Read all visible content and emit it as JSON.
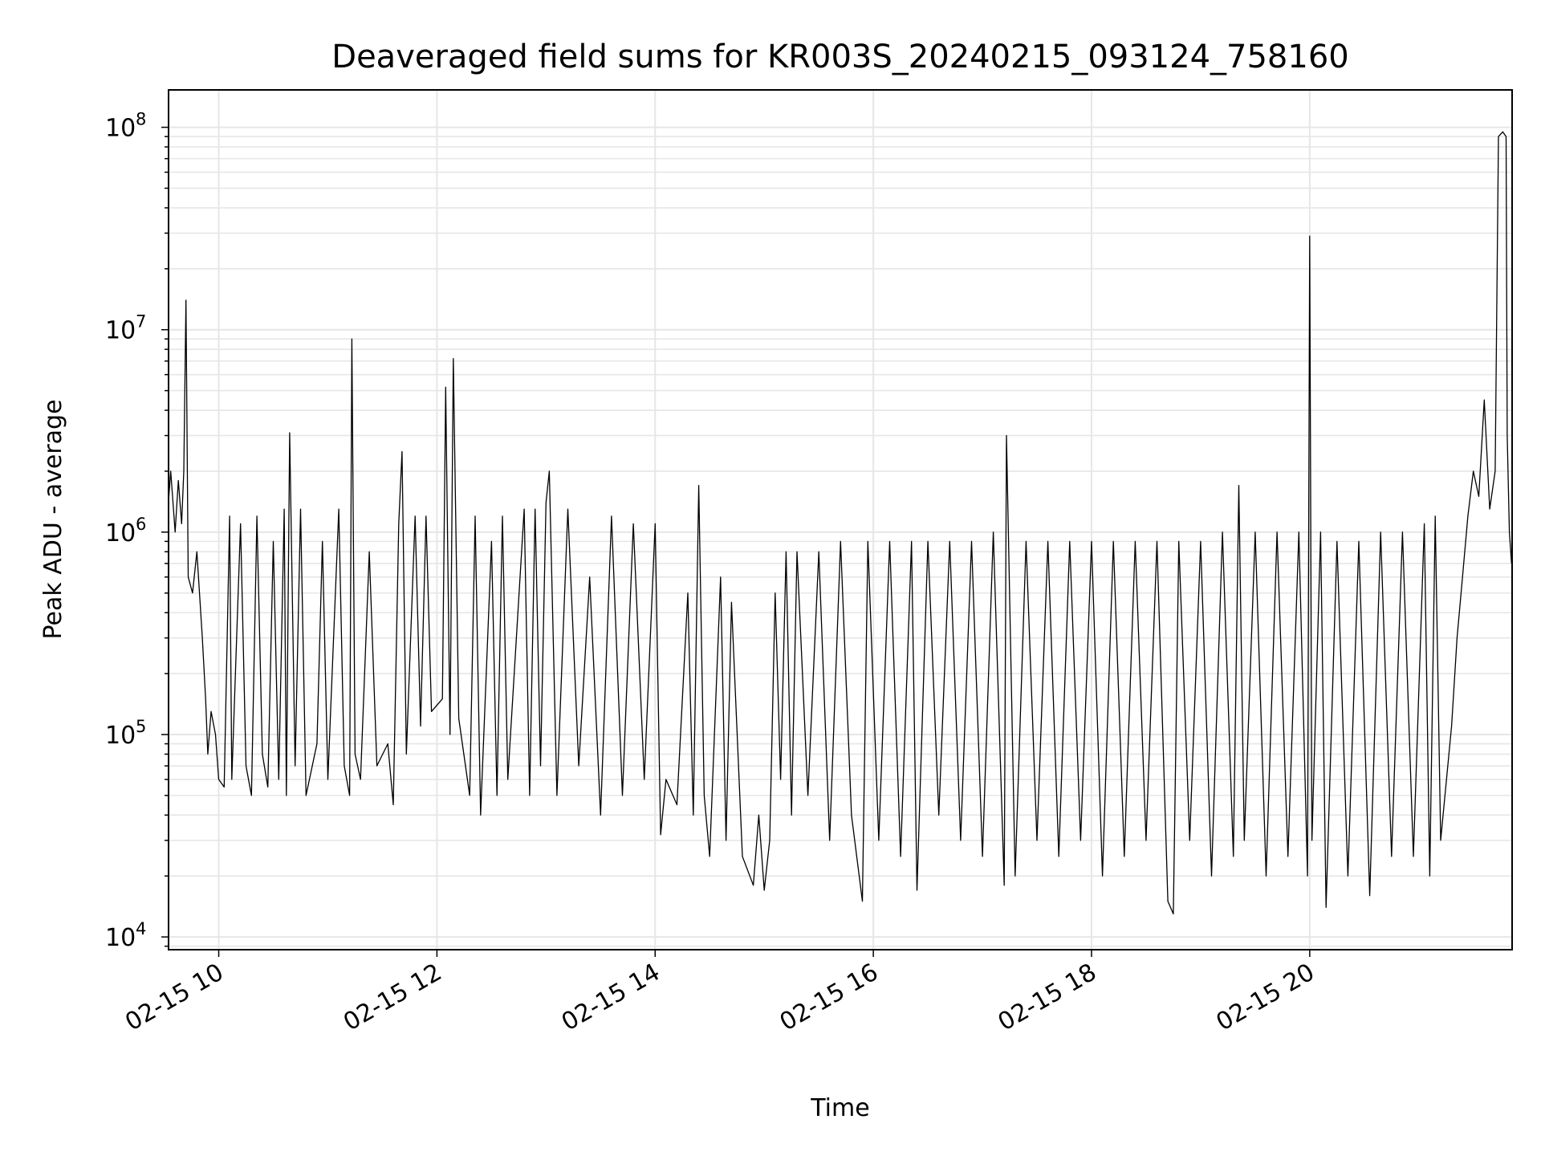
{
  "chart_data": {
    "type": "line",
    "title": "Deaveraged field sums for KR003S_20240215_093124_758160",
    "xlabel": "Time",
    "ylabel": "Peak ADU - average",
    "yscale": "log",
    "xlim_hours": [
      9.54,
      21.855
    ],
    "ylim": [
      8650,
      153000000
    ],
    "grid": true,
    "line_color": "#000000",
    "grid_color": "#e6e6e6",
    "x_ticks": [
      {
        "hour": 10,
        "label": "02-15 10"
      },
      {
        "hour": 12,
        "label": "02-15 12"
      },
      {
        "hour": 14,
        "label": "02-15 14"
      },
      {
        "hour": 16,
        "label": "02-15 16"
      },
      {
        "hour": 18,
        "label": "02-15 18"
      },
      {
        "hour": 20,
        "label": "02-15 20"
      }
    ],
    "y_ticks": [
      {
        "value": 10000,
        "base": "10",
        "exp": "4"
      },
      {
        "value": 100000,
        "base": "10",
        "exp": "5"
      },
      {
        "value": 1000000,
        "base": "10",
        "exp": "6"
      },
      {
        "value": 10000000,
        "base": "10",
        "exp": "7"
      },
      {
        "value": 100000000,
        "base": "10",
        "exp": "8"
      }
    ],
    "series": [
      {
        "name": "field sums",
        "x_hours": [
          9.53,
          9.56,
          9.6,
          9.63,
          9.66,
          9.68,
          9.7,
          9.72,
          9.76,
          9.8,
          9.85,
          9.88,
          9.9,
          9.93,
          9.97,
          10.0,
          10.05,
          10.1,
          10.12,
          10.2,
          10.25,
          10.3,
          10.35,
          10.4,
          10.45,
          10.5,
          10.55,
          10.6,
          10.62,
          10.65,
          10.7,
          10.75,
          10.8,
          10.9,
          10.95,
          11.0,
          11.1,
          11.15,
          11.2,
          11.22,
          11.25,
          11.3,
          11.38,
          11.45,
          11.55,
          11.6,
          11.65,
          11.68,
          11.72,
          11.8,
          11.85,
          11.9,
          11.95,
          12.05,
          12.08,
          12.12,
          12.15,
          12.2,
          12.3,
          12.35,
          12.4,
          12.5,
          12.55,
          12.6,
          12.65,
          12.8,
          12.85,
          12.9,
          12.95,
          13.0,
          13.03,
          13.1,
          13.2,
          13.3,
          13.4,
          13.5,
          13.6,
          13.7,
          13.8,
          13.9,
          14.0,
          14.05,
          14.1,
          14.2,
          14.3,
          14.35,
          14.4,
          14.45,
          14.5,
          14.6,
          14.65,
          14.7,
          14.8,
          14.9,
          14.95,
          15.0,
          15.05,
          15.1,
          15.15,
          15.2,
          15.25,
          15.3,
          15.4,
          15.5,
          15.6,
          15.7,
          15.8,
          15.9,
          15.95,
          16.05,
          16.15,
          16.25,
          16.35,
          16.4,
          16.5,
          16.6,
          16.7,
          16.8,
          16.9,
          17.0,
          17.1,
          17.2,
          17.22,
          17.3,
          17.4,
          17.5,
          17.6,
          17.7,
          17.8,
          17.9,
          18.0,
          18.1,
          18.2,
          18.3,
          18.4,
          18.5,
          18.6,
          18.7,
          18.75,
          18.8,
          18.9,
          19.0,
          19.1,
          19.2,
          19.3,
          19.35,
          19.4,
          19.5,
          19.6,
          19.7,
          19.8,
          19.9,
          19.98,
          20.0,
          20.02,
          20.1,
          20.15,
          20.25,
          20.35,
          20.45,
          20.55,
          20.65,
          20.75,
          20.85,
          20.95,
          21.05,
          21.1,
          21.15,
          21.2,
          21.3,
          21.35,
          21.4,
          21.45,
          21.5,
          21.55,
          21.6,
          21.65,
          21.7,
          21.73,
          21.77,
          21.8,
          21.81,
          21.83,
          21.85
        ],
        "y": [
          1200000,
          2000000,
          1000000,
          1800000,
          1100000,
          2000000,
          14000000,
          600000,
          500000,
          800000,
          300000,
          150000,
          80000,
          130000,
          100000,
          60000,
          55000,
          1200000,
          60000,
          1100000,
          70000,
          50000,
          1200000,
          80000,
          55000,
          900000,
          60000,
          1300000,
          50000,
          3100000,
          70000,
          1300000,
          50000,
          90000,
          900000,
          60000,
          1300000,
          70000,
          50000,
          9000000,
          80000,
          60000,
          800000,
          70000,
          90000,
          45000,
          1100000,
          2500000,
          80000,
          1200000,
          110000,
          1200000,
          130000,
          150000,
          5200000,
          100000,
          7200000,
          120000,
          50000,
          1200000,
          40000,
          900000,
          50000,
          1200000,
          60000,
          1300000,
          50000,
          1300000,
          70000,
          1400000,
          2000000,
          50000,
          1300000,
          70000,
          600000,
          40000,
          1200000,
          50000,
          1100000,
          60000,
          1100000,
          32000,
          60000,
          45000,
          500000,
          40000,
          1700000,
          50000,
          25000,
          600000,
          30000,
          450000,
          25000,
          18000,
          40000,
          17000,
          30000,
          500000,
          60000,
          800000,
          40000,
          800000,
          50000,
          800000,
          30000,
          900000,
          40000,
          15000,
          900000,
          30000,
          900000,
          25000,
          900000,
          17000,
          900000,
          40000,
          900000,
          30000,
          900000,
          25000,
          1000000,
          18000,
          3000000,
          20000,
          900000,
          30000,
          900000,
          25000,
          900000,
          30000,
          900000,
          20000,
          900000,
          25000,
          900000,
          30000,
          900000,
          15000,
          13000,
          900000,
          30000,
          900000,
          20000,
          1000000,
          25000,
          1700000,
          30000,
          1000000,
          20000,
          1000000,
          25000,
          1000000,
          20000,
          29000000,
          30000,
          1000000,
          14000,
          900000,
          20000,
          900000,
          16000,
          1000000,
          25000,
          1000000,
          25000,
          1100000,
          20000,
          1200000,
          30000,
          110000,
          300000,
          600000,
          1200000,
          2000000,
          1500000,
          4500000,
          1300000,
          2000000,
          90000000,
          95000000,
          90000000,
          3000000,
          1000000,
          700000
        ]
      }
    ]
  }
}
